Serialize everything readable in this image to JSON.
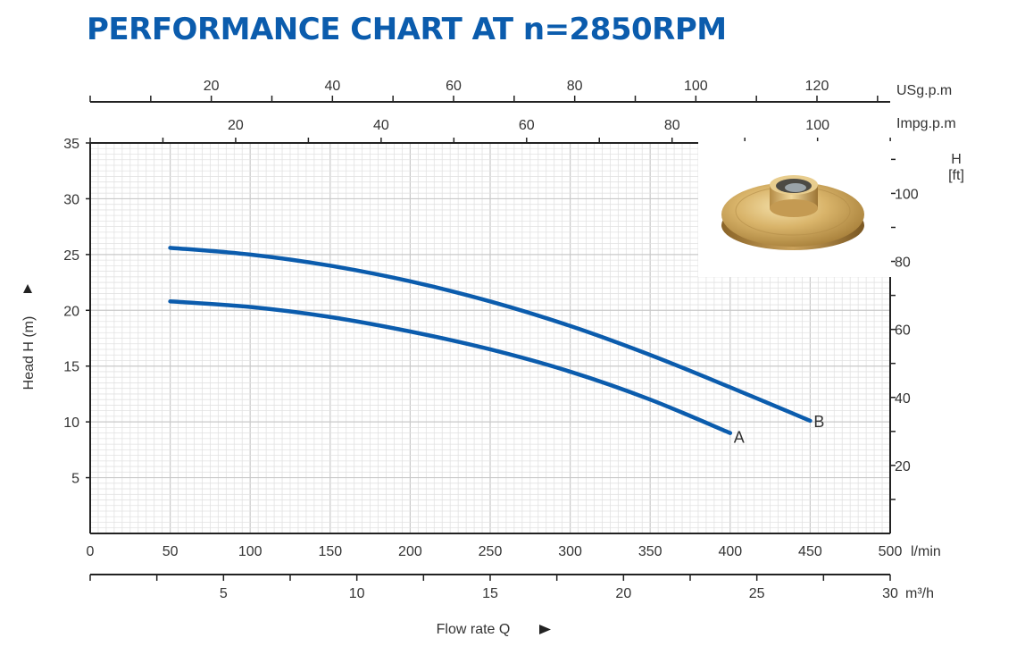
{
  "chart_data": {
    "type": "line",
    "title": "PERFORMANCE CHART AT n=2850RPM",
    "title_color": "#0b5cad",
    "curve_color": "#0b5cad",
    "grid": true,
    "x_axes": {
      "primary": {
        "unit": "l/min",
        "range": [
          0,
          500
        ],
        "ticks": [
          0,
          50,
          100,
          150,
          200,
          250,
          300,
          350,
          400,
          450,
          500
        ]
      },
      "m3h": {
        "unit": "m³/h",
        "range": [
          0,
          30
        ],
        "ticks": [
          5,
          10,
          15,
          20,
          25,
          30
        ]
      },
      "usgpm": {
        "unit": "USg.p.m",
        "ticks": [
          20,
          40,
          60,
          80,
          100,
          120
        ]
      },
      "impgpm": {
        "unit": "Impg.p.m",
        "ticks": [
          20,
          40,
          60,
          80,
          100
        ]
      },
      "title": "Flow rate Q"
    },
    "y_axes": {
      "left": {
        "label": "Head H (m)",
        "range": [
          0,
          35
        ],
        "ticks": [
          5,
          10,
          15,
          20,
          25,
          30,
          35
        ]
      },
      "right": {
        "unit_top": "H",
        "unit_bottom": "[ft]",
        "ticks": [
          20,
          40,
          60,
          80,
          100
        ]
      }
    },
    "series": [
      {
        "name": "A",
        "x": [
          50,
          100,
          150,
          200,
          250,
          300,
          350,
          400
        ],
        "y": [
          20.8,
          20.3,
          19.4,
          18.1,
          16.5,
          14.5,
          12.0,
          9.0
        ]
      },
      {
        "name": "B",
        "x": [
          50,
          100,
          150,
          200,
          250,
          300,
          350,
          400,
          450
        ],
        "y": [
          25.6,
          25.0,
          24.0,
          22.6,
          20.8,
          18.6,
          16.0,
          13.1,
          10.1
        ]
      }
    ]
  },
  "image": {
    "name": "impeller-photo"
  }
}
